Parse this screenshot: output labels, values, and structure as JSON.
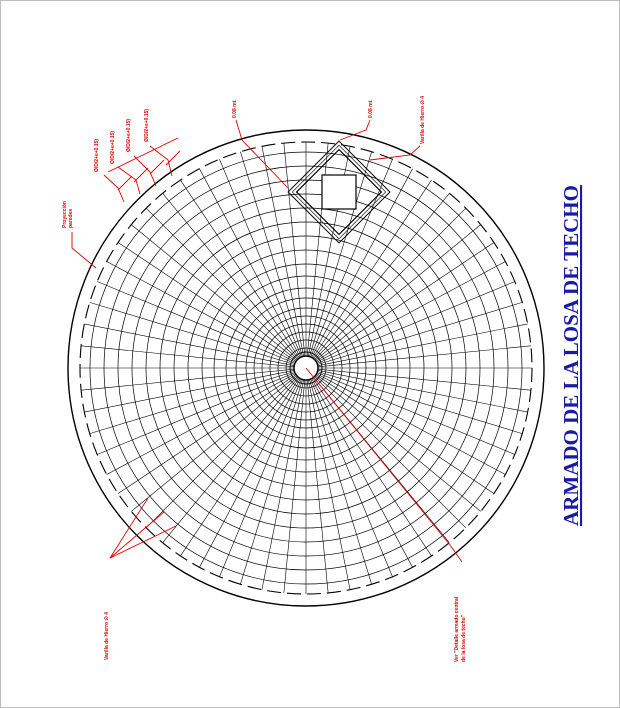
{
  "drawing": {
    "title": "ARMADO DE LA LOSA DE TECHO",
    "annotations": {
      "proyeccion": [
        "Proyección",
        "paredes"
      ],
      "dim_1": "Ø/D/2+e+0.15)",
      "dim_2": "Ø/D/2+e+0.15)",
      "dim_3": "Ø/D/2+e+0.15)",
      "dim_4": "Ø/D/2+e+0.15)",
      "spacing_left": "0.08 mt.",
      "spacing_right": "0.08 mt.",
      "varilla_top": "Varilla de Hierro ∅ 4",
      "varilla_bottom": "Varilla de Hierro ∅ 4",
      "ver_detalle": [
        "Ver \"Detalle armado central",
        "de la losa de techo\""
      ]
    },
    "colors": {
      "line": "#000000",
      "annotation": "#e00000",
      "title": "#1a1aa8",
      "frame": "#bdbdbd"
    }
  }
}
